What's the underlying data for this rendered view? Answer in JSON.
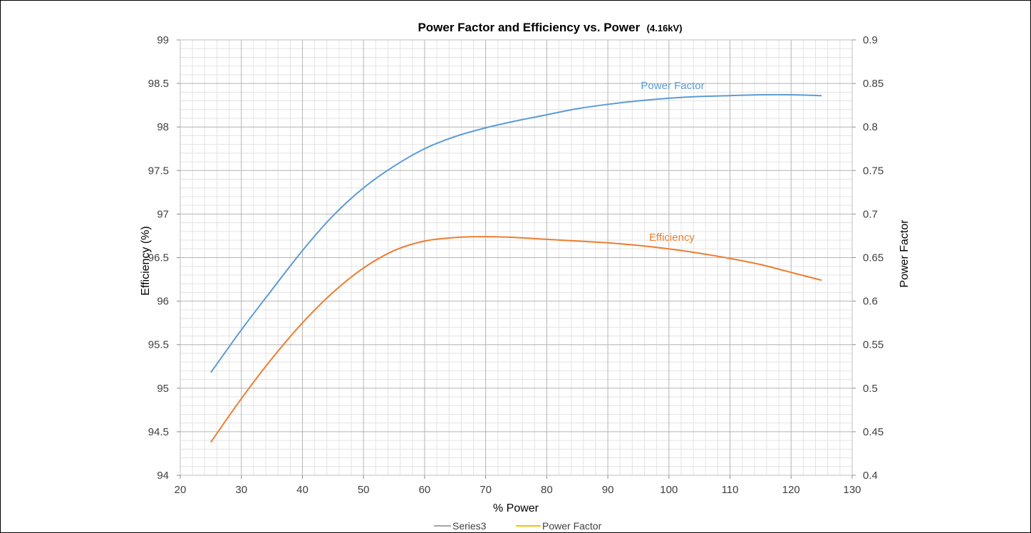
{
  "chart_data": {
    "type": "line",
    "title": "Power Factor and Efficiency vs. Power",
    "subtitle": "(4.16kV)",
    "xlabel": "% Power",
    "ylabel_left": "Efficiency (%)",
    "ylabel_right": "Power Factor",
    "xlim": [
      20,
      130
    ],
    "ylim_left": [
      94,
      99
    ],
    "ylim_right": [
      0.4,
      0.9
    ],
    "x_ticks": [
      20,
      30,
      40,
      50,
      60,
      70,
      80,
      90,
      100,
      110,
      120,
      130
    ],
    "y_left_ticks": [
      "94",
      "94.5",
      "95",
      "95.5",
      "96",
      "96.5",
      "97",
      "97.5",
      "98",
      "98.5",
      "99"
    ],
    "y_right_ticks": [
      "0.4",
      "0.45",
      "0.5",
      "0.55",
      "0.6",
      "0.65",
      "0.7",
      "0.75",
      "0.8",
      "0.85",
      "0.9"
    ],
    "grid": true,
    "legend_position": "bottom",
    "legend": [
      {
        "label": "Series3",
        "color": "#a5a5a5"
      },
      {
        "label": "Power Factor",
        "color": "#ffc000"
      }
    ],
    "series": [
      {
        "name": "Power Factor",
        "axis": "right",
        "color": "#5b9bd5",
        "label": "Power Factor",
        "x": [
          25,
          30,
          35,
          40,
          45,
          50,
          55,
          60,
          65,
          70,
          75,
          80,
          85,
          90,
          95,
          100,
          105,
          110,
          115,
          120,
          125
        ],
        "y": [
          0.518,
          0.567,
          0.613,
          0.658,
          0.698,
          0.73,
          0.755,
          0.775,
          0.789,
          0.799,
          0.807,
          0.814,
          0.821,
          0.826,
          0.83,
          0.833,
          0.835,
          0.836,
          0.837,
          0.837,
          0.836
        ]
      },
      {
        "name": "Efficiency",
        "axis": "left",
        "color": "#ed7d31",
        "label": "Efficiency",
        "x": [
          25,
          30,
          35,
          40,
          45,
          50,
          55,
          60,
          65,
          70,
          75,
          80,
          85,
          90,
          95,
          100,
          105,
          110,
          115,
          120,
          125
        ],
        "y": [
          94.38,
          94.88,
          95.34,
          95.75,
          96.1,
          96.38,
          96.58,
          96.69,
          96.73,
          96.74,
          96.73,
          96.71,
          96.69,
          96.67,
          96.64,
          96.6,
          96.55,
          96.49,
          96.42,
          96.33,
          96.24
        ]
      }
    ]
  }
}
